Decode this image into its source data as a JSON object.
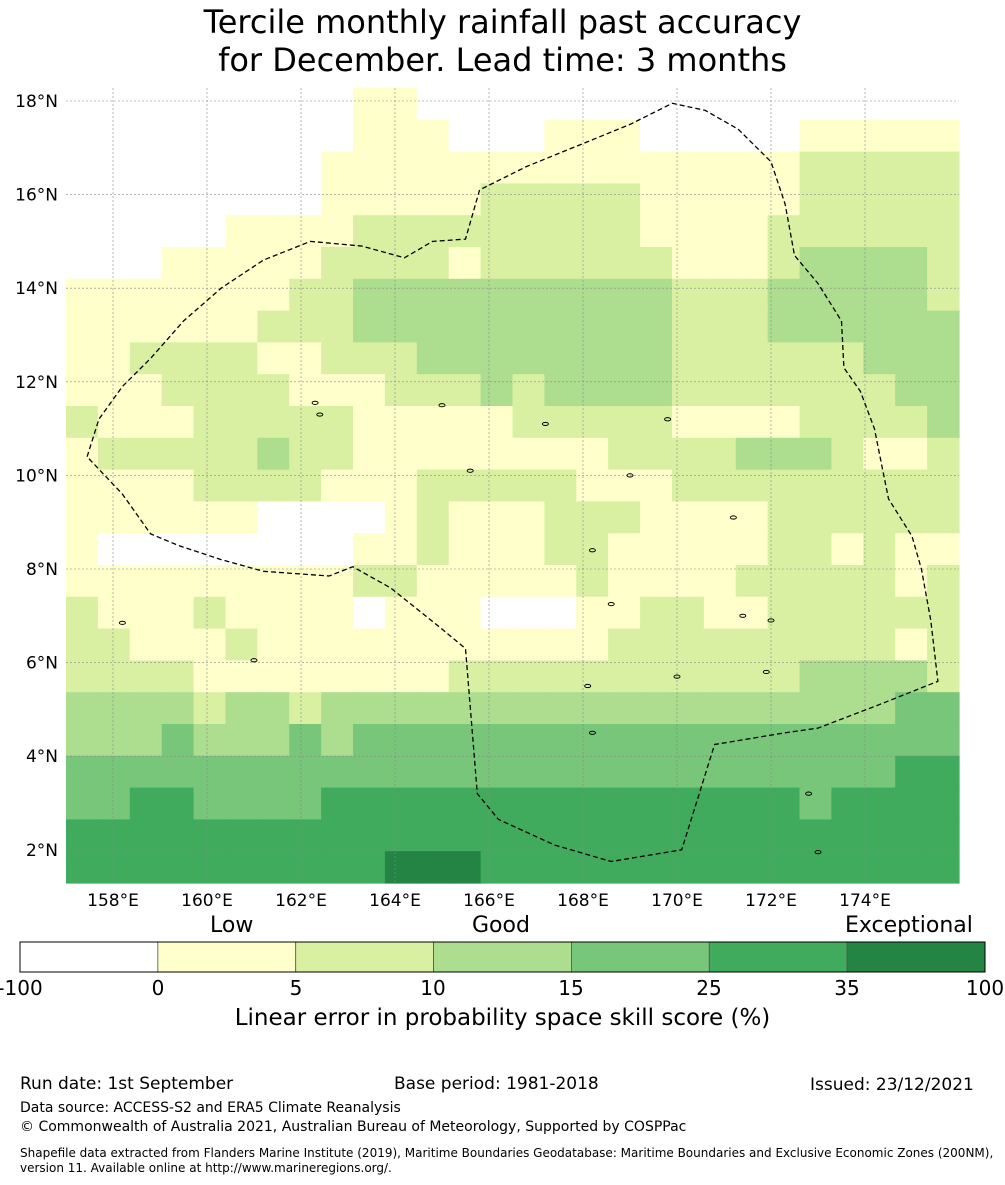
{
  "title": {
    "line1": "Tercile monthly rainfall past accuracy",
    "line2": "for December. Lead time: 3 months"
  },
  "map": {
    "lat_labels": [
      "18°N",
      "16°N",
      "14°N",
      "12°N",
      "10°N",
      "8°N",
      "6°N",
      "4°N",
      "2°N"
    ],
    "lat_values": [
      18,
      16,
      14,
      12,
      10,
      8,
      6,
      4,
      2
    ],
    "lon_labels": [
      "158°E",
      "160°E",
      "162°E",
      "164°E",
      "166°E",
      "168°E",
      "170°E",
      "172°E",
      "174°E"
    ],
    "lon_values": [
      158,
      160,
      162,
      164,
      166,
      168,
      170,
      172,
      174
    ],
    "extent": {
      "lon": [
        157,
        176
      ],
      "lat": [
        1.4,
        18.3
      ]
    },
    "boundary": [
      [
        157.45,
        10.4
      ],
      [
        157.7,
        11.2
      ],
      [
        158.2,
        11.9
      ],
      [
        158.8,
        12.5
      ],
      [
        159.5,
        13.3
      ],
      [
        160.3,
        14.0
      ],
      [
        161.2,
        14.6
      ],
      [
        162.2,
        15.0
      ],
      [
        163.3,
        14.9
      ],
      [
        164.2,
        14.65
      ],
      [
        164.8,
        15.0
      ],
      [
        165.5,
        15.05
      ],
      [
        165.8,
        16.1
      ],
      [
        166.8,
        16.6
      ],
      [
        167.9,
        17.05
      ],
      [
        169.0,
        17.5
      ],
      [
        169.9,
        17.95
      ],
      [
        170.6,
        17.8
      ],
      [
        171.3,
        17.4
      ],
      [
        172.0,
        16.7
      ],
      [
        172.3,
        15.8
      ],
      [
        172.5,
        14.7
      ],
      [
        173.0,
        14.1
      ],
      [
        173.5,
        13.3
      ],
      [
        173.55,
        12.3
      ],
      [
        173.9,
        11.8
      ],
      [
        174.2,
        11.0
      ],
      [
        174.5,
        9.5
      ],
      [
        175.0,
        8.7
      ],
      [
        175.2,
        8.0
      ],
      [
        175.4,
        6.9
      ],
      [
        175.55,
        5.6
      ],
      [
        174.3,
        5.1
      ],
      [
        173.0,
        4.6
      ],
      [
        172.3,
        4.5
      ],
      [
        170.8,
        4.25
      ],
      [
        170.1,
        2.0
      ],
      [
        168.6,
        1.75
      ],
      [
        167.4,
        2.1
      ],
      [
        166.2,
        2.65
      ],
      [
        165.75,
        3.2
      ],
      [
        165.5,
        6.3
      ],
      [
        164.9,
        6.8
      ],
      [
        163.9,
        7.6
      ],
      [
        163.1,
        8.05
      ],
      [
        162.6,
        7.85
      ],
      [
        161.2,
        7.95
      ],
      [
        160.3,
        8.2
      ],
      [
        159.4,
        8.5
      ],
      [
        158.8,
        8.75
      ],
      [
        158.2,
        9.6
      ],
      [
        157.45,
        10.4
      ]
    ]
  },
  "colorbar": {
    "categories": [
      "Low",
      "Good",
      "Exceptional"
    ],
    "ticks": [
      "-100",
      "0",
      "5",
      "10",
      "15",
      "25",
      "35",
      "100"
    ],
    "colors": [
      "#ffffff",
      "#ffffcc",
      "#d9f0a3",
      "#addd8e",
      "#78c679",
      "#41ab5d",
      "#238443"
    ],
    "label": "Linear error in probability space skill score (%)"
  },
  "footer": {
    "run_date": "Run date: 1st September",
    "base_period": "Base period: 1981-2018",
    "issued": "Issued: 23/12/2021",
    "data_source": "Data source: ACCESS-S2 and ERA5 Climate Reanalysis",
    "copyright": "© Commonwealth of Australia 2021, Australian Bureau of Meteorology, Supported by COSPPac",
    "shapefile": "Shapefile data extracted from Flanders Marine Institute (2019), Maritime Boundaries Geodatabase: Maritime Boundaries and Exclusive Economic Zones (200NM), version 11. Available online at http://www.marineregions.org/."
  }
}
